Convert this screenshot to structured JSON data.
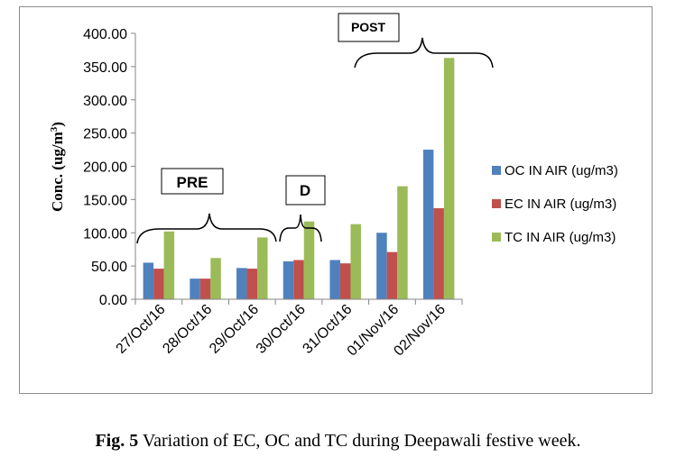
{
  "chart_data": {
    "type": "bar",
    "categories": [
      "27/Oct/16",
      "28/Oct/16",
      "29/Oct/16",
      "30/Oct/16",
      "31/Oct/16",
      "01/Nov/16",
      "02/Nov/16"
    ],
    "series": [
      {
        "name": "OC IN AIR (ug/m3)",
        "color": "#4f81bd",
        "values": [
          55,
          31,
          47,
          57,
          59,
          100,
          225
        ]
      },
      {
        "name": "EC IN AIR (ug/m3)",
        "color": "#c0504d",
        "values": [
          46,
          31,
          46,
          59,
          54,
          71,
          137
        ]
      },
      {
        "name": "TC IN AIR (ug/m3)",
        "color": "#9bbb59",
        "values": [
          102,
          62,
          93,
          117,
          113,
          170,
          363
        ]
      }
    ],
    "ylabel_main": "Conc. (ug/m",
    "ylabel_sup": "3",
    "ylabel_end": ")",
    "ylim": [
      0,
      400
    ],
    "yticks": [
      "0.00",
      "50.00",
      "100.00",
      "150.00",
      "200.00",
      "250.00",
      "300.00",
      "350.00",
      "400.00"
    ],
    "grid": false,
    "legend_position": "right",
    "annotations": {
      "pre": "PRE",
      "d": "D",
      "post": "POST"
    }
  },
  "caption": {
    "label": "Fig. 5",
    "text": " Variation of EC, OC and TC during Deepawali festive week."
  }
}
